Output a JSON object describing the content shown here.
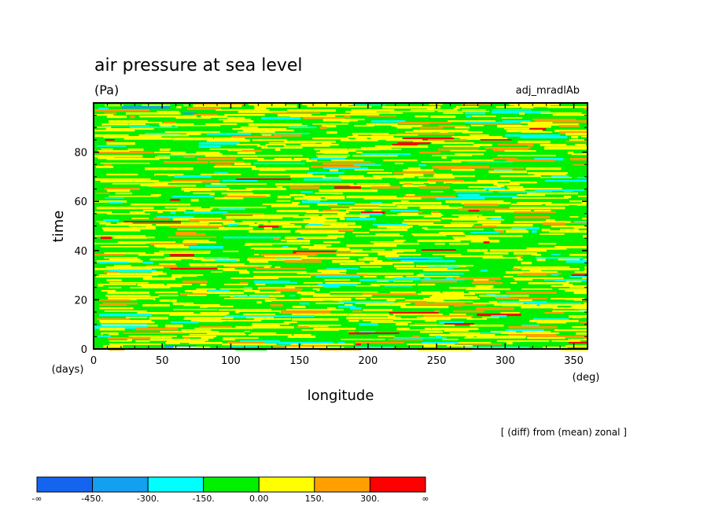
{
  "chart_data": {
    "type": "heatmap",
    "title": "air pressure at sea level",
    "units": "(Pa)",
    "experiment": "adj_mradlAb",
    "xlabel": "longitude",
    "ylabel": "time",
    "x_unit": "(deg)",
    "y_unit": "(days)",
    "xlim": [
      0,
      360
    ],
    "ylim": [
      0,
      100
    ],
    "xticks": [
      0,
      50,
      100,
      150,
      200,
      250,
      300,
      350
    ],
    "yticks": [
      0,
      20,
      40,
      60,
      80
    ],
    "note": "[ (diff) from (mean) zonal ]",
    "colorbar": {
      "labels": [
        "-∞",
        "-450.",
        "-300.",
        "-150.",
        "0.00",
        "150.",
        "300.",
        "∞"
      ],
      "colors": [
        "#1464f0",
        "#14a0f0",
        "#00ffff",
        "#00f000",
        "#ffff00",
        "#ffa000",
        "#ff0000"
      ]
    },
    "field_summary": "noisy zonally elongated streaks; mostly green (-150 to 0) and yellow (0 to 150), scattered orange (150 to 300) and cyan (-300 to -150), rare red and blue"
  }
}
